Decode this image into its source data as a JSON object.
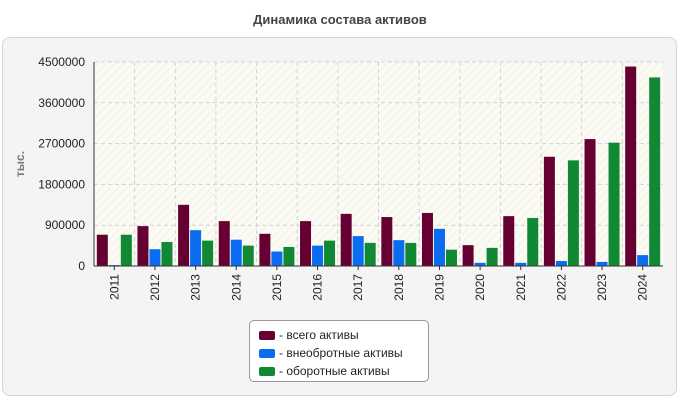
{
  "chart_data": {
    "type": "bar",
    "title": "Динамика состава активов",
    "ylabel": "тыс.",
    "xlabel": "",
    "ylim": [
      0,
      4500000
    ],
    "yticks": [
      "0",
      "900000",
      "1800000",
      "2700000",
      "3600000",
      "4500000"
    ],
    "categories": [
      "2011",
      "2012",
      "2013",
      "2014",
      "2015",
      "2016",
      "2017",
      "2018",
      "2019",
      "2020",
      "2021",
      "2022",
      "2023",
      "2024"
    ],
    "grid": true,
    "legend_position": "bottom",
    "series": [
      {
        "name": "- всего активы",
        "color": "#660033",
        "values": [
          690000,
          880000,
          1350000,
          990000,
          710000,
          990000,
          1150000,
          1080000,
          1170000,
          460000,
          1100000,
          2410000,
          2800000,
          4400000
        ]
      },
      {
        "name": "- внеобротные активы",
        "color": "#0a6cf0",
        "values": [
          20000,
          370000,
          790000,
          580000,
          320000,
          450000,
          660000,
          570000,
          820000,
          70000,
          70000,
          110000,
          90000,
          240000
        ]
      },
      {
        "name": "- оборотные активы",
        "color": "#118833",
        "values": [
          690000,
          530000,
          560000,
          450000,
          420000,
          560000,
          510000,
          510000,
          360000,
          400000,
          1060000,
          2330000,
          2720000,
          4160000
        ]
      }
    ]
  }
}
